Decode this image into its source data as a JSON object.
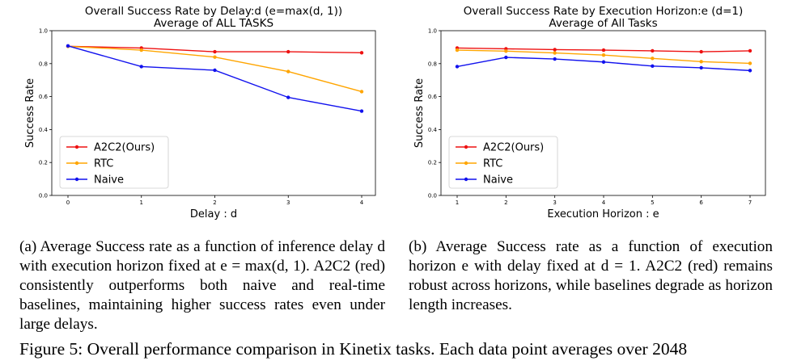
{
  "chart_data": [
    {
      "type": "line",
      "title_line1": "Overall Success Rate by Delay:d (e=max(d, 1))",
      "title_line2": "Average of ALL TASKS",
      "xlabel": "Delay : d",
      "ylabel": "Success Rate",
      "x": [
        0,
        1,
        2,
        3,
        4
      ],
      "x_ticks": [
        "0",
        "1",
        "2",
        "3",
        "4"
      ],
      "ylim": [
        0.0,
        1.0
      ],
      "y_ticks": [
        "0.0",
        "0.2",
        "0.4",
        "0.6",
        "0.8",
        "1.0"
      ],
      "legend_position": "lower-left",
      "series": [
        {
          "name": "A2C2(Ours)",
          "color": "#ee1111",
          "values": [
            0.905,
            0.895,
            0.872,
            0.872,
            0.866
          ]
        },
        {
          "name": "RTC",
          "color": "#ffa500",
          "values": [
            0.905,
            0.882,
            0.84,
            0.752,
            0.63
          ]
        },
        {
          "name": "Naive",
          "color": "#1111ee",
          "values": [
            0.908,
            0.782,
            0.76,
            0.595,
            0.512
          ]
        }
      ]
    },
    {
      "type": "line",
      "title_line1": "Overall Success Rate by Execution Horizon:e (d=1)",
      "title_line2": "Average of All Tasks",
      "xlabel": "Execution Horizon : e",
      "ylabel": "Success Rate",
      "x": [
        1,
        2,
        3,
        4,
        5,
        6,
        7
      ],
      "x_ticks": [
        "1",
        "2",
        "3",
        "4",
        "5",
        "6",
        "7"
      ],
      "ylim": [
        0.0,
        1.0
      ],
      "y_ticks": [
        "0.0",
        "0.2",
        "0.4",
        "0.6",
        "0.8",
        "1.0"
      ],
      "legend_position": "lower-left",
      "series": [
        {
          "name": "A2C2(Ours)",
          "color": "#ee1111",
          "values": [
            0.895,
            0.89,
            0.885,
            0.882,
            0.878,
            0.872,
            0.878
          ]
        },
        {
          "name": "RTC",
          "color": "#ffa500",
          "values": [
            0.882,
            0.876,
            0.865,
            0.852,
            0.832,
            0.812,
            0.802
          ]
        },
        {
          "name": "Naive",
          "color": "#1111ee",
          "values": [
            0.782,
            0.838,
            0.828,
            0.81,
            0.785,
            0.775,
            0.758
          ]
        }
      ]
    }
  ],
  "captions": {
    "a": "(a) Average Success rate as a function of inference delay d with execution horizon fixed at e = max(d, 1). A2C2 (red) consistently outperforms both naive and real-time baselines, maintaining higher success rates even under large delays.",
    "b": "(b) Average Success rate as a function of execution horizon e with delay fixed at d = 1. A2C2 (red) remains robust across horizons, while baselines degrade as horizon length increases.",
    "figure": "Figure 5: Overall performance comparison in Kinetix tasks. Each data point averages over 2048"
  }
}
